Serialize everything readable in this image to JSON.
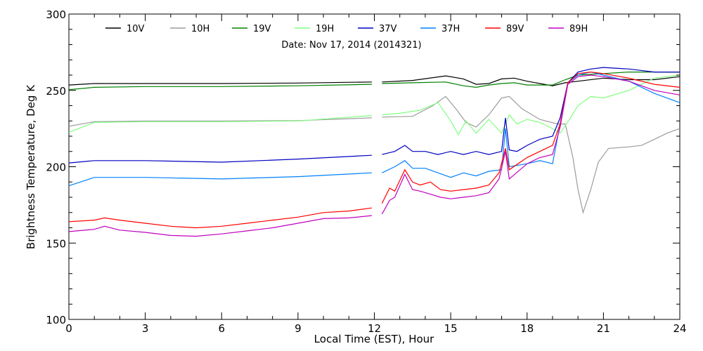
{
  "chart_data": {
    "type": "line",
    "title": "",
    "annotation": "Date: Nov 17, 2014 (2014321)",
    "xlabel": "Local Time (EST), Hour",
    "ylabel": "Brightness Temperature, Deg K",
    "xlim": [
      0,
      24
    ],
    "ylim": [
      100,
      300
    ],
    "xticks": [
      0,
      3,
      6,
      9,
      12,
      15,
      18,
      21,
      24
    ],
    "yticks": [
      100,
      150,
      200,
      250,
      300
    ],
    "grid": false,
    "legend_position": "top",
    "series": [
      {
        "name": "10V",
        "color": "#000000",
        "points": [
          [
            0,
            253.5
          ],
          [
            1,
            254.5
          ],
          [
            3,
            254.5
          ],
          [
            6,
            254.5
          ],
          [
            9,
            254.8
          ],
          [
            11.9,
            255.5
          ],
          [
            12.3,
            255.5
          ],
          [
            13.5,
            256.5
          ],
          [
            14.8,
            259.5
          ],
          [
            15.5,
            257.5
          ],
          [
            16,
            254
          ],
          [
            16.5,
            254.5
          ],
          [
            17,
            257.5
          ],
          [
            17.5,
            258
          ],
          [
            18,
            256
          ],
          [
            19,
            253
          ],
          [
            19.5,
            255
          ],
          [
            20,
            256
          ],
          [
            21,
            258
          ],
          [
            22,
            257
          ],
          [
            23,
            257
          ],
          [
            24,
            259
          ]
        ]
      },
      {
        "name": "10H",
        "color": "#9c9c9c",
        "points": [
          [
            0,
            226.5
          ],
          [
            1,
            229.5
          ],
          [
            3,
            230
          ],
          [
            6,
            230
          ],
          [
            9,
            230.2
          ],
          [
            11.9,
            232
          ],
          [
            12.3,
            232.5
          ],
          [
            13.5,
            233
          ],
          [
            14.3,
            240
          ],
          [
            14.8,
            246
          ],
          [
            15.2,
            238
          ],
          [
            15.6,
            229
          ],
          [
            16,
            226
          ],
          [
            16.5,
            234
          ],
          [
            17,
            245
          ],
          [
            17.3,
            246
          ],
          [
            17.8,
            238
          ],
          [
            18.5,
            231
          ],
          [
            19.2,
            228
          ],
          [
            19.5,
            228
          ],
          [
            19.8,
            206
          ],
          [
            20,
            185
          ],
          [
            20.2,
            170
          ],
          [
            20.5,
            185
          ],
          [
            20.8,
            203
          ],
          [
            21.2,
            212
          ],
          [
            22,
            213
          ],
          [
            22.5,
            214
          ],
          [
            23,
            218
          ],
          [
            23.5,
            222
          ],
          [
            24,
            225
          ]
        ]
      },
      {
        "name": "19V",
        "color": "#008000",
        "points": [
          [
            0,
            250.5
          ],
          [
            1,
            252
          ],
          [
            3,
            252.5
          ],
          [
            6,
            252.5
          ],
          [
            9,
            253
          ],
          [
            11.9,
            254
          ],
          [
            12.3,
            254.5
          ],
          [
            13.5,
            255
          ],
          [
            14.8,
            255.5
          ],
          [
            15.5,
            253
          ],
          [
            16,
            252
          ],
          [
            16.5,
            253.5
          ],
          [
            17,
            254.5
          ],
          [
            17.5,
            255
          ],
          [
            18,
            253.5
          ],
          [
            19,
            253.5
          ],
          [
            19.5,
            257
          ],
          [
            20,
            260
          ],
          [
            21,
            261
          ],
          [
            22,
            262
          ],
          [
            23,
            262
          ],
          [
            24,
            262
          ]
        ]
      },
      {
        "name": "19H",
        "color": "#80ff80",
        "points": [
          [
            0,
            222.5
          ],
          [
            1,
            229
          ],
          [
            3,
            229.5
          ],
          [
            6,
            229.5
          ],
          [
            9,
            230
          ],
          [
            11.9,
            233.5
          ],
          [
            12.3,
            234
          ],
          [
            13,
            235
          ],
          [
            13.8,
            237
          ],
          [
            14.5,
            242
          ],
          [
            15,
            230
          ],
          [
            15.3,
            221
          ],
          [
            15.6,
            230
          ],
          [
            16,
            222
          ],
          [
            16.5,
            231
          ],
          [
            17,
            222
          ],
          [
            17.3,
            234
          ],
          [
            17.6,
            228
          ],
          [
            18,
            231
          ],
          [
            18.5,
            229
          ],
          [
            19,
            225
          ],
          [
            19.3,
            222
          ],
          [
            19.7,
            232
          ],
          [
            20,
            240
          ],
          [
            20.5,
            246
          ],
          [
            21,
            245
          ],
          [
            22,
            250
          ],
          [
            23,
            258
          ],
          [
            24,
            260
          ]
        ]
      },
      {
        "name": "37V",
        "color": "#0000c0",
        "points": [
          [
            0,
            202.5
          ],
          [
            1,
            204
          ],
          [
            3,
            204
          ],
          [
            6,
            203
          ],
          [
            9,
            205
          ],
          [
            11.9,
            207.5
          ],
          [
            12.3,
            208
          ],
          [
            12.8,
            210
          ],
          [
            13.2,
            214
          ],
          [
            13.5,
            210
          ],
          [
            14,
            210
          ],
          [
            14.5,
            208
          ],
          [
            15,
            210
          ],
          [
            15.5,
            208
          ],
          [
            16,
            210
          ],
          [
            16.5,
            208
          ],
          [
            17,
            210
          ],
          [
            17.15,
            232
          ],
          [
            17.3,
            211
          ],
          [
            17.6,
            210
          ],
          [
            18,
            214
          ],
          [
            18.5,
            218
          ],
          [
            19,
            220
          ],
          [
            19.3,
            232
          ],
          [
            19.6,
            255
          ],
          [
            20,
            262
          ],
          [
            20.5,
            264
          ],
          [
            21,
            265
          ],
          [
            22,
            264
          ],
          [
            23,
            262
          ],
          [
            24,
            262
          ]
        ]
      },
      {
        "name": "37H",
        "color": "#0080ff",
        "points": [
          [
            0,
            187.5
          ],
          [
            1,
            193
          ],
          [
            3,
            193
          ],
          [
            6,
            192
          ],
          [
            9,
            193.5
          ],
          [
            11.9,
            196
          ],
          [
            12.3,
            196
          ],
          [
            12.8,
            200
          ],
          [
            13.2,
            204
          ],
          [
            13.5,
            199
          ],
          [
            14,
            199
          ],
          [
            14.5,
            196
          ],
          [
            15,
            193
          ],
          [
            15.5,
            196
          ],
          [
            16,
            194
          ],
          [
            16.5,
            197
          ],
          [
            17,
            198
          ],
          [
            17.15,
            225
          ],
          [
            17.3,
            200
          ],
          [
            18,
            202
          ],
          [
            18.5,
            204
          ],
          [
            19,
            202
          ],
          [
            19.3,
            228
          ],
          [
            19.6,
            255
          ],
          [
            20,
            260
          ],
          [
            20.5,
            262
          ],
          [
            21,
            260
          ],
          [
            22,
            256
          ],
          [
            23,
            248
          ],
          [
            24,
            242
          ]
        ]
      },
      {
        "name": "89V",
        "color": "#ff0000",
        "points": [
          [
            0,
            164
          ],
          [
            1,
            165
          ],
          [
            1.4,
            166.5
          ],
          [
            2,
            165
          ],
          [
            3,
            163
          ],
          [
            4,
            161
          ],
          [
            5,
            160
          ],
          [
            6,
            161
          ],
          [
            7,
            163
          ],
          [
            8,
            165
          ],
          [
            9,
            167
          ],
          [
            10,
            170
          ],
          [
            11,
            171
          ],
          [
            11.9,
            173
          ],
          [
            12.3,
            176
          ],
          [
            12.6,
            186
          ],
          [
            12.8,
            184
          ],
          [
            13.2,
            198
          ],
          [
            13.5,
            190
          ],
          [
            13.8,
            188
          ],
          [
            14.2,
            190
          ],
          [
            14.6,
            185
          ],
          [
            15,
            184
          ],
          [
            15.5,
            185
          ],
          [
            16,
            186
          ],
          [
            16.5,
            188
          ],
          [
            16.9,
            196
          ],
          [
            17.15,
            212
          ],
          [
            17.3,
            198
          ],
          [
            18,
            206
          ],
          [
            18.5,
            210
          ],
          [
            19,
            214
          ],
          [
            19.3,
            228
          ],
          [
            19.6,
            255
          ],
          [
            20,
            261
          ],
          [
            20.5,
            262
          ],
          [
            21,
            261
          ],
          [
            22,
            258
          ],
          [
            23,
            254
          ],
          [
            24,
            252
          ]
        ]
      },
      {
        "name": "89H",
        "color": "#c000c0",
        "points": [
          [
            0,
            157.5
          ],
          [
            1,
            159
          ],
          [
            1.4,
            161
          ],
          [
            2,
            158.5
          ],
          [
            3,
            157
          ],
          [
            4,
            155
          ],
          [
            5,
            154.5
          ],
          [
            6,
            156
          ],
          [
            7,
            158
          ],
          [
            8,
            160
          ],
          [
            9,
            163
          ],
          [
            10,
            166
          ],
          [
            11,
            166.5
          ],
          [
            11.9,
            168
          ],
          [
            12.3,
            169
          ],
          [
            12.6,
            178
          ],
          [
            12.8,
            180
          ],
          [
            13.2,
            195
          ],
          [
            13.5,
            185
          ],
          [
            13.8,
            184
          ],
          [
            14.2,
            182
          ],
          [
            14.6,
            180
          ],
          [
            15,
            179
          ],
          [
            15.5,
            180
          ],
          [
            16,
            181
          ],
          [
            16.5,
            183
          ],
          [
            16.9,
            192
          ],
          [
            17.15,
            210
          ],
          [
            17.3,
            192
          ],
          [
            18,
            202
          ],
          [
            18.5,
            206
          ],
          [
            19,
            208
          ],
          [
            19.3,
            226
          ],
          [
            19.6,
            254
          ],
          [
            20,
            259
          ],
          [
            20.5,
            260
          ],
          [
            21,
            259
          ],
          [
            22,
            256
          ],
          [
            23,
            250
          ],
          [
            24,
            247
          ]
        ]
      }
    ]
  }
}
